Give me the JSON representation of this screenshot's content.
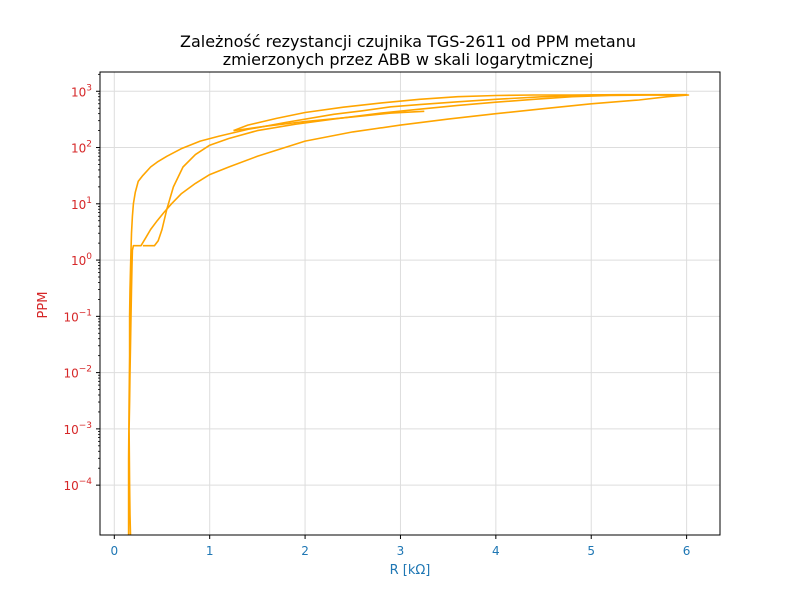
{
  "chart_data": {
    "type": "line",
    "title_line1": "Zależność rezystancji czujnika TGS-2611 od PPM metanu",
    "title_line2": "zmierzonych przez ABB w skali logarytmicznej",
    "xlabel": "R [kΩ]",
    "ylabel": "PPM",
    "xlim": [
      -0.15,
      6.35
    ],
    "ylim": [
      1.3e-05,
      2200
    ],
    "yscale": "log",
    "grid": true,
    "x_ticks": [
      0,
      1,
      2,
      3,
      4,
      5,
      6
    ],
    "x_tick_labels": [
      "0",
      "1",
      "2",
      "3",
      "4",
      "5",
      "6"
    ],
    "y_ticks": [
      0.0001,
      0.001,
      0.01,
      0.1,
      1,
      10,
      100,
      1000
    ],
    "y_tick_exponents": [
      "−4",
      "−3",
      "−2",
      "−1",
      "0",
      "1",
      "2",
      "3"
    ],
    "colors": {
      "line": "#FFA500",
      "xaxis": "#1f77b4",
      "yaxis": "#d62728",
      "grid": "#dddddd"
    },
    "series": [
      {
        "x": [
          0.15,
          0.15,
          0.15,
          0.155,
          0.16,
          0.16,
          0.165,
          0.17,
          0.175,
          0.18,
          0.19,
          0.2,
          0.22,
          0.25,
          0.3,
          0.38,
          0.45,
          0.55,
          0.7,
          0.9,
          1.1,
          1.4,
          1.8,
          2.3,
          2.6,
          2.9,
          3.2,
          3.6,
          4.0,
          4.5,
          5.0,
          5.5,
          5.8,
          6.02,
          5.8,
          5.5,
          5.0,
          4.5,
          4.0,
          3.5,
          3.0,
          2.5,
          2.0,
          1.5,
          1.2,
          1.0,
          0.85,
          0.7,
          0.6,
          0.52,
          0.45,
          0.38,
          0.33,
          0.28,
          0.22,
          0.2,
          0.19,
          0.185,
          0.18,
          0.175,
          0.17,
          0.165,
          0.16,
          0.155,
          0.16,
          0.165,
          0.17
        ],
        "y": [
          1.3e-05,
          4e-05,
          0.0003,
          0.003,
          0.02,
          0.1,
          0.3,
          0.7,
          1.5,
          3,
          6,
          10,
          16,
          25,
          32,
          45,
          55,
          70,
          95,
          130,
          160,
          210,
          280,
          390,
          450,
          530,
          580,
          650,
          720,
          800,
          860,
          860,
          860,
          860,
          800,
          700,
          600,
          490,
          400,
          320,
          250,
          190,
          130,
          70,
          45,
          33,
          23,
          15,
          10,
          7,
          5,
          3.5,
          2.5,
          1.8,
          1.8,
          1.8,
          1.5,
          0.8,
          0.3,
          0.1,
          0.03,
          0.01,
          0.003,
          0.001,
          0.0001,
          3e-05,
          1.3e-05
        ]
      },
      {
        "x": [
          0.3,
          0.35,
          0.38,
          0.42,
          0.46,
          0.5,
          0.55,
          0.62,
          0.72,
          0.85,
          1.0,
          1.2,
          1.5,
          1.9,
          2.3,
          2.8,
          3.2,
          3.6,
          4.0,
          4.4,
          4.8,
          5.2,
          5.6,
          5.9,
          6.0,
          5.7,
          5.3,
          4.8,
          4.4,
          4.0,
          3.6,
          3.2,
          2.8,
          2.4,
          2.0,
          1.7,
          1.4,
          1.25
        ],
        "y": [
          1.8,
          1.8,
          1.8,
          1.8,
          2.2,
          3.5,
          8,
          20,
          45,
          75,
          110,
          145,
          200,
          260,
          320,
          410,
          480,
          560,
          640,
          720,
          800,
          840,
          860,
          850,
          870,
          870,
          870,
          860,
          860,
          840,
          800,
          720,
          620,
          520,
          420,
          330,
          250,
          200
        ]
      },
      {
        "x": [
          1.25,
          1.3,
          1.6,
          2.0,
          2.5,
          2.9,
          3.25
        ],
        "y": [
          200,
          205,
          240,
          290,
          350,
          410,
          440
        ]
      }
    ]
  }
}
